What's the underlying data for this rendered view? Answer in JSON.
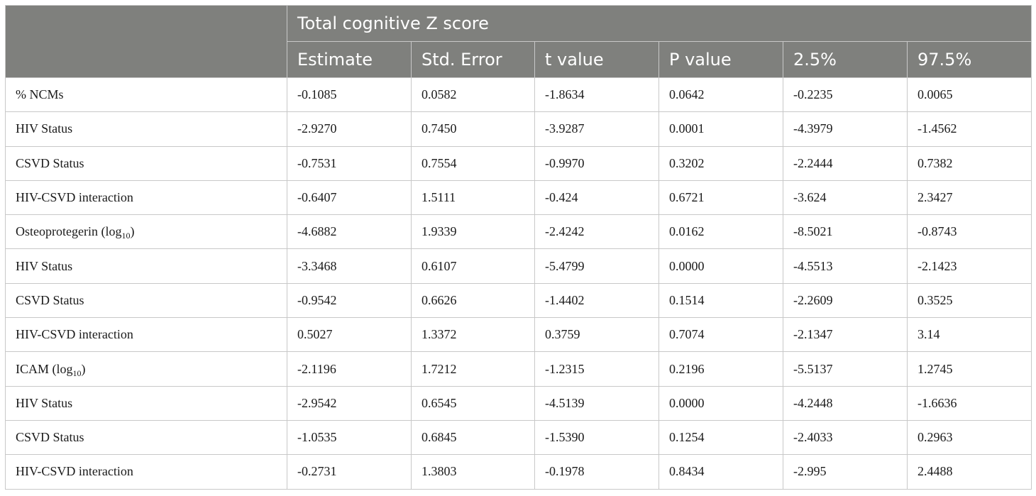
{
  "table": {
    "group_header": "Total cognitive Z score",
    "columns": [
      "Estimate",
      "Std. Error",
      "t value",
      "P value",
      "2.5%",
      "97.5%"
    ],
    "rows": [
      {
        "label": "% NCMs",
        "label_sub": "",
        "label_suffix": "",
        "values": [
          "-0.1085",
          "0.0582",
          "-1.8634",
          "0.0642",
          "-0.2235",
          "0.0065"
        ]
      },
      {
        "label": "HIV Status",
        "label_sub": "",
        "label_suffix": "",
        "values": [
          "-2.9270",
          "0.7450",
          "-3.9287",
          "0.0001",
          "-4.3979",
          "-1.4562"
        ]
      },
      {
        "label": "CSVD Status",
        "label_sub": "",
        "label_suffix": "",
        "values": [
          "-0.7531",
          "0.7554",
          "-0.9970",
          "0.3202",
          "-2.2444",
          "0.7382"
        ]
      },
      {
        "label": "HIV-CSVD interaction",
        "label_sub": "",
        "label_suffix": "",
        "values": [
          "-0.6407",
          "1.5111",
          "-0.424",
          "0.6721",
          "-3.624",
          "2.3427"
        ]
      },
      {
        "label": "Osteoprotegerin (log",
        "label_sub": "10",
        "label_suffix": ")",
        "values": [
          "-4.6882",
          "1.9339",
          "-2.4242",
          "0.0162",
          "-8.5021",
          "-0.8743"
        ]
      },
      {
        "label": "HIV Status",
        "label_sub": "",
        "label_suffix": "",
        "values": [
          "-3.3468",
          "0.6107",
          "-5.4799",
          "0.0000",
          "-4.5513",
          "-2.1423"
        ]
      },
      {
        "label": "CSVD Status",
        "label_sub": "",
        "label_suffix": "",
        "values": [
          "-0.9542",
          "0.6626",
          "-1.4402",
          "0.1514",
          "-2.2609",
          "0.3525"
        ]
      },
      {
        "label": "HIV-CSVD interaction",
        "label_sub": "",
        "label_suffix": "",
        "values": [
          "0.5027",
          "1.3372",
          "0.3759",
          "0.7074",
          "-2.1347",
          "3.14"
        ]
      },
      {
        "label": "ICAM (log",
        "label_sub": "10",
        "label_suffix": ")",
        "values": [
          "-2.1196",
          "1.7212",
          "-1.2315",
          "0.2196",
          "-5.5137",
          "1.2745"
        ]
      },
      {
        "label": "HIV Status",
        "label_sub": "",
        "label_suffix": "",
        "values": [
          "-2.9542",
          "0.6545",
          "-4.5139",
          "0.0000",
          "-4.2448",
          "-1.6636"
        ]
      },
      {
        "label": "CSVD Status",
        "label_sub": "",
        "label_suffix": "",
        "values": [
          "-1.0535",
          "0.6845",
          "-1.5390",
          "0.1254",
          "-2.4033",
          "0.2963"
        ]
      },
      {
        "label": "HIV-CSVD interaction",
        "label_sub": "",
        "label_suffix": "",
        "values": [
          "-0.2731",
          "1.3803",
          "-0.1978",
          "0.8434",
          "-2.995",
          "2.4488"
        ]
      }
    ]
  },
  "colors": {
    "header_bg": "#7f807d",
    "header_text": "#ffffff",
    "grid": "#c8c8c8"
  }
}
